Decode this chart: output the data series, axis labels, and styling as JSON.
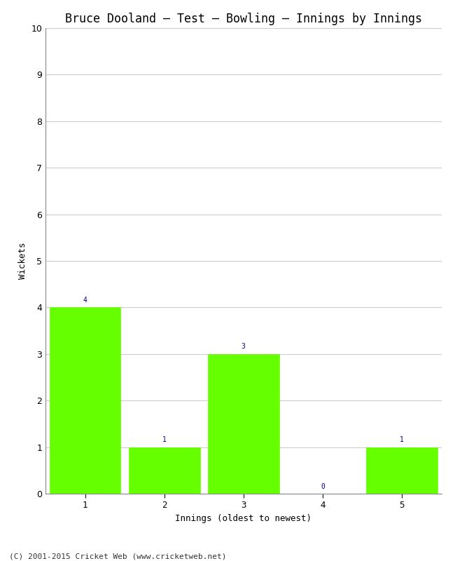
{
  "title": "Bruce Dooland – Test – Bowling – Innings by Innings",
  "xlabel": "Innings (oldest to newest)",
  "ylabel": "Wickets",
  "categories": [
    "1",
    "2",
    "3",
    "4",
    "5"
  ],
  "values": [
    4,
    1,
    3,
    0,
    1
  ],
  "bar_color": "#66ff00",
  "bar_edge_color": "#66ff00",
  "ylim": [
    0,
    10
  ],
  "yticks": [
    0,
    1,
    2,
    3,
    4,
    5,
    6,
    7,
    8,
    9,
    10
  ],
  "annotation_color": "#000080",
  "annotation_fontsize": 7,
  "title_fontsize": 12,
  "label_fontsize": 9,
  "tick_fontsize": 9,
  "footer": "(C) 2001-2015 Cricket Web (www.cricketweb.net)",
  "footer_fontsize": 8,
  "background_color": "#ffffff",
  "grid_color": "#cccccc"
}
